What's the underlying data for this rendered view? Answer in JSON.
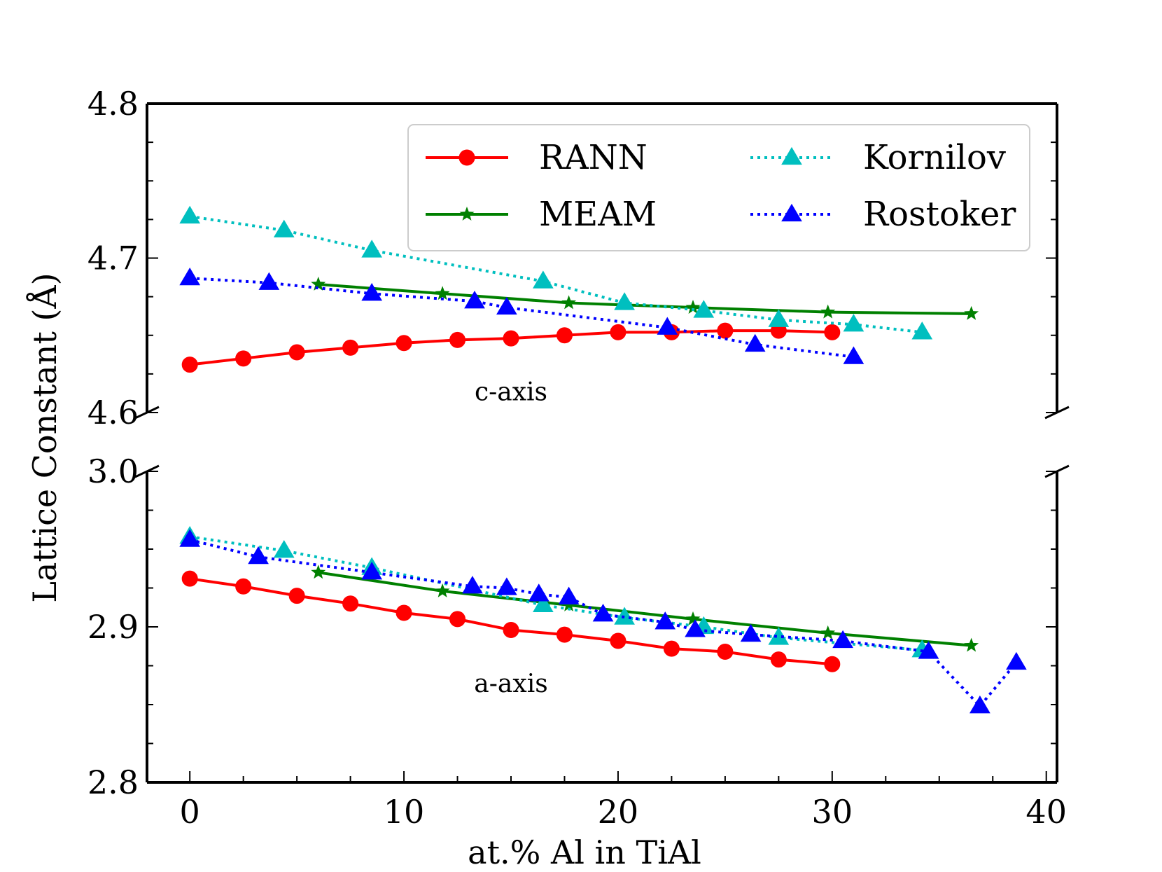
{
  "chart_data": {
    "type": "line",
    "xlabel": "at.% Al in TiAl",
    "ylabel": "Lattice Constant (Å)",
    "xlim": [
      -2,
      40.5
    ],
    "x_ticks": [
      0,
      10,
      20,
      30,
      40
    ],
    "panels": [
      {
        "id": "c",
        "annotation": "c-axis",
        "ylim": [
          4.6,
          4.8
        ],
        "y_ticks": [
          4.6,
          4.7,
          4.8
        ],
        "y_tick_labels": [
          "4.6",
          "4.7",
          "4.8"
        ],
        "series": [
          {
            "name": "RANN",
            "x": [
              0,
              2.5,
              5,
              7.5,
              10,
              12.5,
              15,
              17.5,
              20,
              22.5,
              25,
              27.5,
              30
            ],
            "y": [
              4.631,
              4.635,
              4.639,
              4.642,
              4.645,
              4.647,
              4.648,
              4.65,
              4.652,
              4.652,
              4.653,
              4.653,
              4.652
            ]
          },
          {
            "name": "MEAM",
            "x": [
              6,
              11.8,
              17.7,
              23.5,
              29.8,
              36.5
            ],
            "y": [
              4.683,
              4.677,
              4.671,
              4.668,
              4.665,
              4.664
            ]
          },
          {
            "name": "Kornilov",
            "x": [
              0,
              4.4,
              8.5,
              16.5,
              20.3,
              24,
              27.5,
              31,
              34.2
            ],
            "y": [
              4.727,
              4.718,
              4.705,
              4.685,
              4.671,
              4.666,
              4.66,
              4.657,
              4.652
            ]
          },
          {
            "name": "Rostoker",
            "x": [
              0,
              3.7,
              8.5,
              13.3,
              14.8,
              22.3,
              26.4,
              31
            ],
            "y": [
              4.687,
              4.684,
              4.677,
              4.672,
              4.668,
              4.655,
              4.644,
              4.636
            ]
          }
        ]
      },
      {
        "id": "a",
        "annotation": "a-axis",
        "ylim": [
          2.8,
          3.0
        ],
        "y_ticks": [
          2.8,
          2.9,
          3.0
        ],
        "y_tick_labels": [
          "2.8",
          "2.9",
          "3.0"
        ],
        "series": [
          {
            "name": "RANN",
            "x": [
              0,
              2.5,
              5,
              7.5,
              10,
              12.5,
              15,
              17.5,
              20,
              22.5,
              25,
              27.5,
              30
            ],
            "y": [
              2.931,
              2.926,
              2.92,
              2.915,
              2.909,
              2.905,
              2.898,
              2.895,
              2.891,
              2.886,
              2.884,
              2.879,
              2.876
            ]
          },
          {
            "name": "MEAM",
            "x": [
              6,
              11.8,
              17.7,
              23.5,
              29.8,
              36.5
            ],
            "y": [
              2.935,
              2.923,
              2.914,
              2.905,
              2.896,
              2.888
            ]
          },
          {
            "name": "Kornilov",
            "x": [
              0,
              4.4,
              8.5,
              16.5,
              20.3,
              24,
              27.5,
              34.2
            ],
            "y": [
              2.958,
              2.949,
              2.938,
              2.914,
              2.906,
              2.9,
              2.893,
              2.885
            ]
          },
          {
            "name": "Rostoker",
            "x": [
              0,
              3.2,
              8.5,
              13.2,
              14.8,
              16.3,
              17.7,
              19.3,
              22.2,
              23.6,
              26.2,
              30.5,
              34.5,
              36.9,
              38.6
            ],
            "y": [
              2.956,
              2.945,
              2.935,
              2.926,
              2.925,
              2.921,
              2.919,
              2.908,
              2.903,
              2.898,
              2.895,
              2.891,
              2.884,
              2.849,
              2.877
            ]
          }
        ]
      }
    ],
    "legend": {
      "placement": "top-right",
      "entries": [
        {
          "name": "RANN",
          "label": "RANN"
        },
        {
          "name": "MEAM",
          "label": "MEAM"
        },
        {
          "name": "Kornilov",
          "label": "Kornilov"
        },
        {
          "name": "Rostoker",
          "label": "Rostoker"
        }
      ]
    },
    "styles": {
      "RANN": {
        "color": "#ff0000",
        "dash": "solid",
        "marker": "circle"
      },
      "MEAM": {
        "color": "#008000",
        "dash": "solid",
        "marker": "star"
      },
      "Kornilov": {
        "color": "#00bfbf",
        "dash": "dotted",
        "marker": "triangle"
      },
      "Rostoker": {
        "color": "#0000ff",
        "dash": "dotted",
        "marker": "triangle"
      }
    }
  }
}
